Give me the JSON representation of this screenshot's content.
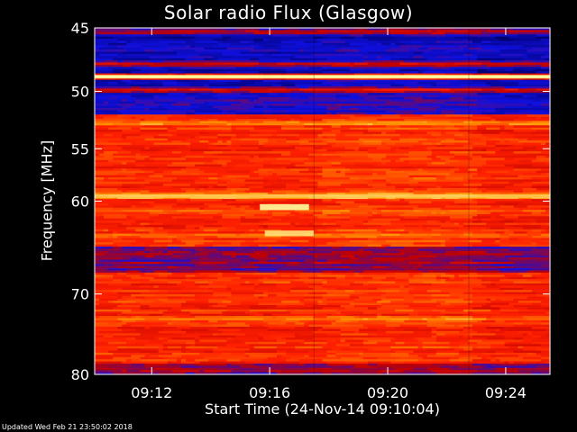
{
  "chart_data": {
    "type": "heatmap",
    "title": "Solar radio Flux (Glasgow)",
    "xlabel": "Start Time (24-Nov-14 09:10:04)",
    "ylabel": "Frequency [MHz]",
    "y_ticks": [
      45,
      50,
      55,
      60,
      70,
      80
    ],
    "y_scale": "log",
    "ylim": [
      45,
      80
    ],
    "y_inverted": true,
    "x_ticks": [
      "09:12",
      "09:16",
      "09:20",
      "09:24"
    ],
    "xlim": [
      "09:10:04",
      "09:25:30"
    ],
    "colormap": [
      "#00006a",
      "#1010e0",
      "#c00000",
      "#ff2000",
      "#ff9000",
      "#ffffa0"
    ],
    "bands": [
      {
        "f": 45.3,
        "level": 0.5
      },
      {
        "f": 46.0,
        "level": 0.05
      },
      {
        "f": 47.8,
        "level": 0.55
      },
      {
        "f": 48.8,
        "level": 1.0
      },
      {
        "f": 49.9,
        "level": 0.55
      },
      {
        "f": 51.0,
        "level": 0.2
      },
      {
        "f": 52.7,
        "level": 0.8
      },
      {
        "f": 54.5,
        "level": 0.62
      },
      {
        "f": 57.5,
        "level": 0.66
      },
      {
        "f": 59.5,
        "level": 0.9
      },
      {
        "f": 61.0,
        "level": 0.7
      },
      {
        "f": 63.5,
        "level": 0.75
      },
      {
        "f": 66.0,
        "level": 0.25
      },
      {
        "f": 68.5,
        "level": 0.65
      },
      {
        "f": 73.0,
        "level": 0.72
      },
      {
        "f": 76.0,
        "level": 0.55
      },
      {
        "f": 79.0,
        "level": 0.3
      }
    ],
    "bursts": [
      {
        "start": "09:15:40",
        "end": "09:17:20",
        "f_low": 60.3,
        "f_high": 60.9,
        "level": 1.0
      },
      {
        "start": "09:15:50",
        "end": "09:17:30",
        "f_low": 63.0,
        "f_high": 63.6,
        "level": 0.95
      }
    ]
  },
  "footer": "Updated Wed Feb 21 23:50:02 2018"
}
